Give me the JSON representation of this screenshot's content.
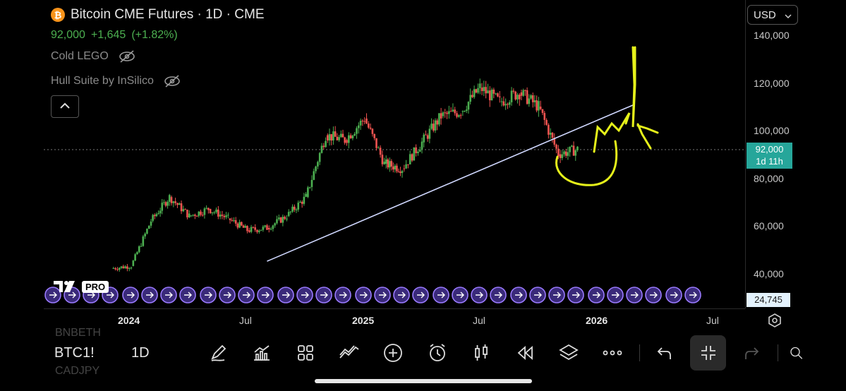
{
  "legend": {
    "title": "Bitcoin CME Futures · 1D · CME",
    "coin_icon": "bitcoin-icon",
    "last": "92,000",
    "change": "+1,645",
    "change_pct": "(+1.82%)",
    "indicators": [
      {
        "name": "Cold LEGO",
        "icon": "eye-off-icon"
      },
      {
        "name": "Hull Suite by InSilico",
        "icon": "eye-off-icon"
      }
    ]
  },
  "currency": "USD",
  "price_axis": [
    "140,000",
    "120,000",
    "100,000",
    "80,000",
    "60,000",
    "40,000"
  ],
  "price_tag": {
    "value": "92,000",
    "countdown": "1d 11h"
  },
  "volume_tag": "24,745",
  "time_axis": [
    {
      "label": "2024",
      "bold": true
    },
    {
      "label": "Jul",
      "bold": false
    },
    {
      "label": "2025",
      "bold": true
    },
    {
      "label": "Jul",
      "bold": false
    },
    {
      "label": "2026",
      "bold": true
    },
    {
      "label": "Jul",
      "bold": false
    }
  ],
  "tv_logo": {
    "mark": "TV",
    "badge": "PRO"
  },
  "bottom_bar": {
    "symbol": "BTC1!",
    "timeframe": "1D",
    "ghost_top": "BNBETH",
    "ghost_bottom": "CADJPY",
    "tools": [
      "draw-icon",
      "indicators-icon",
      "grid-icon",
      "compare-icon",
      "add-icon",
      "alert-icon",
      "chart-style-icon",
      "replay-icon",
      "layers-icon",
      "more-icon",
      "undo-icon",
      "collapse-icon",
      "redo-icon",
      "search-icon"
    ]
  },
  "chart_data": {
    "type": "candlestick",
    "title": "Bitcoin CME Futures · 1D · CME",
    "x": [
      "2023-12",
      "2024-01",
      "2024-02",
      "2024-03",
      "2024-04",
      "2024-05",
      "2024-06",
      "2024-07",
      "2024-08",
      "2024-09",
      "2024-10",
      "2024-11",
      "2024-12",
      "2025-01",
      "2025-02",
      "2025-03",
      "2025-04",
      "2025-05",
      "2025-06",
      "2025-07",
      "2025-08",
      "2025-09",
      "2025-10",
      "2025-11",
      "2025-12"
    ],
    "close": [
      42000,
      43000,
      62000,
      72000,
      64000,
      67000,
      63000,
      58000,
      59000,
      64000,
      72000,
      98000,
      96000,
      105000,
      86000,
      84000,
      95000,
      106000,
      108000,
      118000,
      112000,
      116000,
      110000,
      90000,
      92000
    ],
    "ylim": [
      20000,
      150000
    ],
    "last_price": 92000,
    "trendline": {
      "from": [
        "2024-08",
        45000
      ],
      "to": [
        "2026-03",
        111000
      ]
    }
  }
}
